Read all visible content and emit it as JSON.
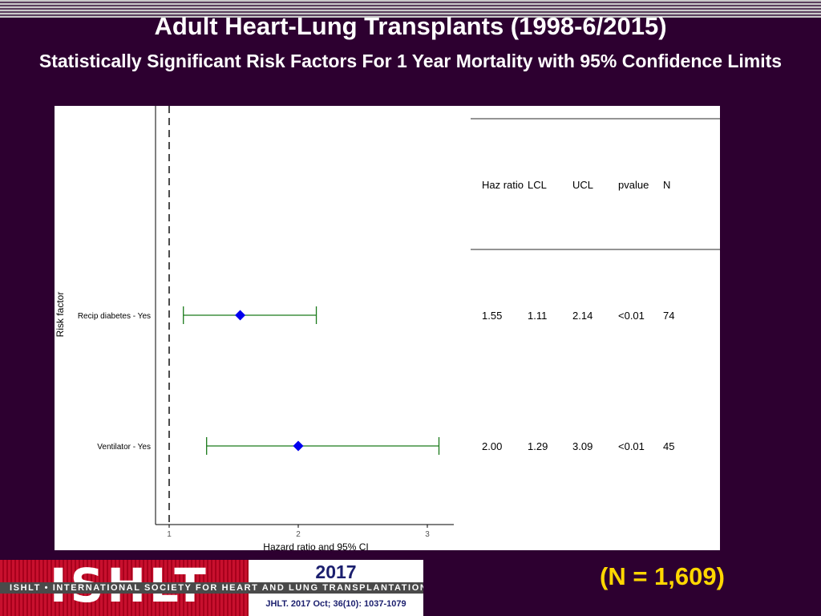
{
  "header": {
    "title": "Adult Heart-Lung Transplants (1998-6/2015)",
    "subtitle": "Statistically Significant Risk Factors For 1 Year Mortality with 95% Confidence Limits"
  },
  "chart_data": {
    "type": "forest",
    "xlabel": "Hazard ratio and 95% CI",
    "ylabel": "Risk factor",
    "xlim": [
      0.9,
      3.2
    ],
    "xticks": [
      "1",
      "2",
      "3"
    ],
    "reference_line": 1,
    "rows": [
      {
        "label": "Recip diabetes - Yes",
        "hr": 1.55,
        "lcl": 1.11,
        "ucl": 2.14,
        "hr_text": "1.55",
        "lcl_text": "1.11",
        "ucl_text": "2.14",
        "pvalue": "<0.01",
        "n": "74"
      },
      {
        "label": "Ventilator - Yes",
        "hr": 2.0,
        "lcl": 1.29,
        "ucl": 3.09,
        "hr_text": "2.00",
        "lcl_text": "1.29",
        "ucl_text": "3.09",
        "pvalue": "<0.01",
        "n": "45"
      }
    ],
    "table_headers": [
      "Haz ratio",
      "LCL",
      "UCL",
      "pvalue",
      "N"
    ],
    "colors": {
      "marker": "#0000ee",
      "ci": "#1a7a1a",
      "axis": "#000000",
      "rule": "#555555"
    }
  },
  "footer": {
    "logo_text": "ISHLT",
    "year": "2017",
    "society": "ISHLT • INTERNATIONAL SOCIETY FOR HEART AND LUNG TRANSPLANTATION",
    "citation": "JHLT. 2017 Oct; 36(10): 1037-1079",
    "total_n": "(N = 1,609)"
  }
}
